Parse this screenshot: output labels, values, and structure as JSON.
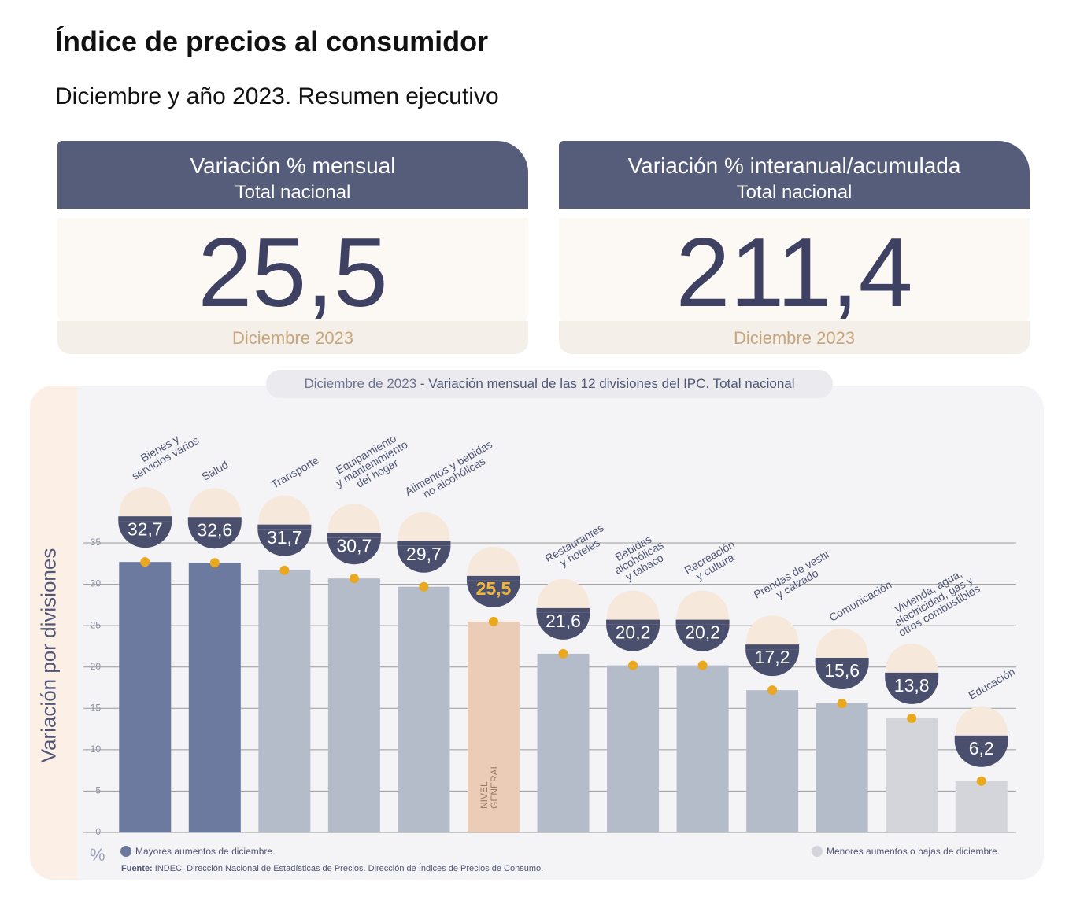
{
  "header": {
    "title": "Índice de precios al consumidor",
    "subtitle": "Diciembre y año 2023. Resumen ejecutivo"
  },
  "cards": [
    {
      "title": "Variación % mensual",
      "subtitle": "Total nacional",
      "value": "25,5",
      "period": "Diciembre 2023"
    },
    {
      "title": "Variación % interanual/acumulada",
      "subtitle": "Total nacional",
      "value": "211,4",
      "period": "Diciembre 2023"
    }
  ],
  "chart_data": {
    "type": "bar",
    "title_date": "Diciembre de 2023",
    "title": "- Variación mensual de las 12 divisiones del IPC. Total nacional",
    "ylabel": "Variación por divisiones",
    "y_unit": "%",
    "categories": [
      "Bienes y\nservicios varios",
      "Salud",
      "Transporte",
      "Equipamiento\ny mantenimiento\ndel hogar",
      "Alimentos y bebidas\nno alcohólicas",
      "NIVEL\nGENERAL",
      "Restaurantes\ny hoteles",
      "Bebidas\nalcohólicas\ny tabaco",
      "Recreación\ny cultura",
      "Prendas de vestir\ny calzado",
      "Comunicación",
      "Vivienda, agua,\nelectricidad, gas y\notros combustibles",
      "Educación"
    ],
    "values": [
      32.7,
      32.6,
      31.7,
      30.7,
      29.7,
      25.5,
      21.6,
      20.2,
      20.2,
      17.2,
      15.6,
      13.8,
      6.2
    ],
    "value_labels": [
      "32,7",
      "32,6",
      "31,7",
      "30,7",
      "29,7",
      "25,5",
      "21,6",
      "20,2",
      "20,2",
      "17,2",
      "15,6",
      "13,8",
      "6,2"
    ],
    "colors": [
      "#6b7a9e",
      "#6b7a9e",
      "#b4bbc9",
      "#b4bbc9",
      "#b4bbc9",
      "#ebcdb7",
      "#b4bbc9",
      "#b4bbc9",
      "#b4bbc9",
      "#b4bbc9",
      "#b4bbc9",
      "#d4d5da",
      "#d4d5da"
    ],
    "value_label_colors": [
      "#ffffff",
      "#ffffff",
      "#ffffff",
      "#ffffff",
      "#ffffff",
      "#f2b53a",
      "#ffffff",
      "#ffffff",
      "#ffffff",
      "#ffffff",
      "#ffffff",
      "#ffffff",
      "#ffffff"
    ],
    "ylim": [
      0,
      35
    ],
    "yticks": [
      0,
      5,
      10,
      15,
      20,
      25,
      30,
      35
    ],
    "grid": true,
    "legend": [
      {
        "label": "Mayores aumentos de diciembre.",
        "color": "#6b7a9e"
      },
      {
        "label": "Menores aumentos o bajas de diciembre.",
        "color": "#d4d5da"
      }
    ],
    "source": {
      "label": "Fuente:",
      "text": "INDEC, Dirección Nacional de Estadísticas de Precios. Dirección de Índices de Precios de Consumo."
    }
  }
}
